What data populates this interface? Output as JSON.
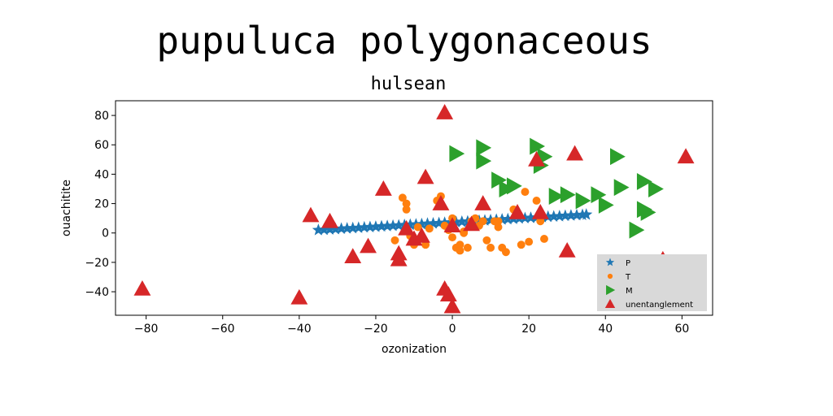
{
  "figure": {
    "suptitle": "pupuluca polygonaceous"
  },
  "chart_data": {
    "type": "scatter",
    "title": "hulsean",
    "xlabel": "ozonization",
    "ylabel": "ouachitite",
    "xlim": [
      -88,
      68
    ],
    "ylim": [
      -56,
      90
    ],
    "xticks": [
      -80,
      -60,
      -40,
      -20,
      0,
      20,
      40,
      60
    ],
    "yticks": [
      -40,
      -20,
      0,
      20,
      40,
      60,
      80
    ],
    "xtick_labels": [
      "−80",
      "−60",
      "−40",
      "−20",
      "0",
      "20",
      "40",
      "60"
    ],
    "ytick_labels": [
      "−40",
      "−20",
      "0",
      "20",
      "40",
      "60",
      "80"
    ],
    "grid": false,
    "legend": {
      "placement": "lower-right"
    },
    "series": [
      {
        "name": "P",
        "marker": "star",
        "color": "#1f77b4",
        "x": [
          -35,
          -33.5,
          -32,
          -30.5,
          -29,
          -27.5,
          -26,
          -24.5,
          -23,
          -21.5,
          -20,
          -18.5,
          -17,
          -15.5,
          -14,
          -12.5,
          -11,
          -9.5,
          -8,
          -6.5,
          -5,
          -3.5,
          -2,
          -0.5,
          1,
          2.5,
          4,
          5.5,
          7,
          8.5,
          10,
          11.5,
          13,
          14.5,
          16,
          17.5,
          19,
          20.5,
          22,
          23.5,
          25,
          26.5,
          28,
          29.5,
          31,
          32.5,
          34,
          35
        ],
        "y": [
          2,
          2.2,
          2.4,
          2.6,
          2.9,
          3.1,
          3.3,
          3.5,
          3.8,
          4,
          4.2,
          4.5,
          4.7,
          4.9,
          5.1,
          5.4,
          5.6,
          5.8,
          6,
          6.3,
          6.5,
          6.7,
          6.9,
          7.2,
          7.4,
          7.6,
          7.8,
          8.1,
          8.3,
          8.5,
          8.7,
          9,
          9.2,
          9.4,
          9.6,
          9.9,
          10.1,
          10.3,
          10.5,
          10.8,
          11,
          11.2,
          11.4,
          11.7,
          11.9,
          12.1,
          12.3,
          12.5
        ]
      },
      {
        "name": "T",
        "marker": "circle",
        "color": "#ff7f0e",
        "x": [
          -13,
          -12,
          -12,
          -10,
          -7,
          -4,
          -3,
          -2,
          -1,
          0,
          1,
          2,
          2,
          3,
          4,
          5,
          6,
          7,
          8,
          9,
          10,
          11,
          12,
          13,
          14,
          16,
          18,
          19,
          20,
          22,
          23,
          24,
          -15,
          -11,
          -9,
          -6,
          0,
          3,
          12,
          23
        ],
        "y": [
          24,
          20,
          16,
          -8,
          -8,
          22,
          25,
          5,
          2,
          -3,
          -10,
          -8,
          -12,
          1,
          -10,
          8,
          10,
          5,
          8,
          -5,
          -10,
          8,
          4,
          -10,
          -13,
          16,
          -8,
          28,
          -6,
          22,
          8,
          -4,
          -5,
          -2,
          4,
          3,
          10,
          0,
          8,
          12
        ]
      },
      {
        "name": "M",
        "marker": "triangle-right",
        "color": "#2ca02c",
        "x": [
          1,
          8,
          8,
          12,
          14,
          16,
          22,
          23,
          24,
          27,
          30,
          34,
          38,
          40,
          43,
          44,
          50,
          50,
          51,
          53,
          48
        ],
        "y": [
          54,
          58,
          49,
          36,
          30,
          32,
          59,
          46,
          52,
          25,
          26,
          22,
          26,
          19,
          52,
          31,
          35,
          16,
          14,
          30,
          2
        ]
      },
      {
        "name": "unentanglement",
        "marker": "triangle-up",
        "color": "#d62728",
        "x": [
          -2,
          -81,
          -40,
          -37,
          -32,
          -26,
          -22,
          -18,
          -14,
          -14,
          -12,
          -10,
          -8,
          -7,
          -3,
          -2,
          -1,
          0,
          0,
          5,
          8,
          17,
          22,
          23,
          30,
          32,
          55,
          61
        ],
        "y": [
          82,
          -38,
          -44,
          12,
          8,
          -16,
          -9,
          30,
          -14,
          -18,
          3,
          -4,
          -2,
          38,
          20,
          -38,
          -42,
          -50,
          5,
          6,
          20,
          14,
          50,
          14,
          -12,
          54,
          -18,
          52
        ]
      }
    ]
  }
}
